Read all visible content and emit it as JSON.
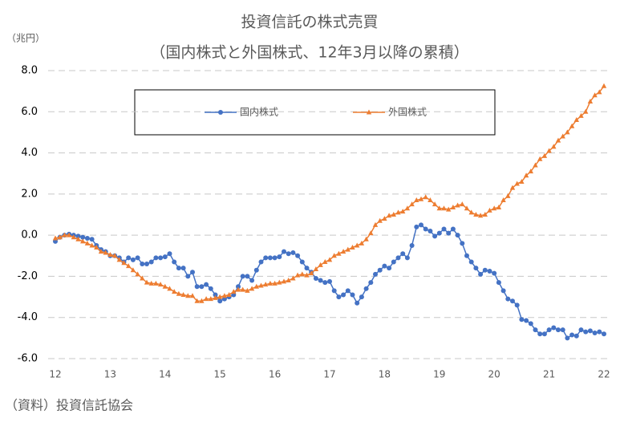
{
  "chart_data": {
    "type": "line",
    "title": "投資信託の株式売買",
    "subtitle": "（国内株式と外国株式、12年3月以降の累積）",
    "y_label": "（兆円）",
    "source": "（資料）投資信託協会",
    "categories": [
      "12",
      null,
      null,
      null,
      null,
      null,
      null,
      null,
      null,
      null,
      null,
      null,
      "13",
      null,
      null,
      null,
      null,
      null,
      null,
      null,
      null,
      null,
      null,
      null,
      "14",
      null,
      null,
      null,
      null,
      null,
      null,
      null,
      null,
      null,
      null,
      null,
      "15",
      null,
      null,
      null,
      null,
      null,
      null,
      null,
      null,
      null,
      null,
      null,
      "16",
      null,
      null,
      null,
      null,
      null,
      null,
      null,
      null,
      null,
      null,
      null,
      "17",
      null,
      null,
      null,
      null,
      null,
      null,
      null,
      null,
      null,
      null,
      null,
      "18",
      null,
      null,
      null,
      null,
      null,
      null,
      null,
      null,
      null,
      null,
      null,
      "19",
      null,
      null,
      null,
      null,
      null,
      null,
      null,
      null,
      null,
      null,
      null,
      "20",
      null,
      null,
      null,
      null,
      null,
      null,
      null,
      null,
      null,
      null,
      null,
      "21",
      null,
      null,
      null,
      null,
      null,
      null,
      null,
      null,
      null,
      null,
      null,
      "22"
    ],
    "series": [
      {
        "name": "国内株式",
        "color": "#4472c4",
        "marker": "circle",
        "values": [
          -0.3,
          -0.1,
          0.0,
          0.05,
          0.0,
          -0.05,
          -0.1,
          -0.15,
          -0.2,
          -0.5,
          -0.7,
          -0.8,
          -1.0,
          -1.0,
          -1.1,
          -1.3,
          -1.1,
          -1.2,
          -1.1,
          -1.4,
          -1.4,
          -1.3,
          -1.1,
          -1.1,
          -1.05,
          -0.9,
          -1.3,
          -1.6,
          -1.6,
          -2.0,
          -1.8,
          -2.5,
          -2.5,
          -2.4,
          -2.6,
          -2.9,
          -3.2,
          -3.1,
          -3.0,
          -2.9,
          -2.5,
          -2.0,
          -2.0,
          -2.2,
          -1.7,
          -1.3,
          -1.1,
          -1.1,
          -1.1,
          -1.05,
          -0.8,
          -0.9,
          -0.85,
          -1.0,
          -1.3,
          -1.6,
          -1.8,
          -2.1,
          -2.2,
          -2.3,
          -2.25,
          -2.7,
          -3.0,
          -2.9,
          -2.7,
          -2.9,
          -3.3,
          -3.0,
          -2.6,
          -2.3,
          -1.9,
          -1.7,
          -1.5,
          -1.6,
          -1.3,
          -1.1,
          -0.9,
          -1.1,
          -0.5,
          0.4,
          0.5,
          0.3,
          0.2,
          -0.05,
          0.1,
          0.3,
          0.1,
          0.3,
          0.0,
          -0.4,
          -1.0,
          -1.3,
          -1.6,
          -1.9,
          -1.7,
          -1.75,
          -1.85,
          -2.3,
          -2.7,
          -3.1,
          -3.2,
          -3.4,
          -4.1,
          -4.15,
          -4.3,
          -4.6,
          -4.8,
          -4.8,
          -4.6,
          -4.5,
          -4.6,
          -4.6,
          -5.0,
          -4.85,
          -4.9,
          -4.6,
          -4.7,
          -4.65,
          -4.75,
          -4.7,
          -4.8
        ]
      },
      {
        "name": "外国株式",
        "color": "#ed7d31",
        "marker": "triangle",
        "values": [
          -0.15,
          -0.1,
          0.0,
          0.0,
          -0.1,
          -0.2,
          -0.3,
          -0.4,
          -0.5,
          -0.6,
          -0.8,
          -0.85,
          -0.95,
          -1.0,
          -1.2,
          -1.35,
          -1.5,
          -1.7,
          -1.9,
          -2.1,
          -2.3,
          -2.35,
          -2.35,
          -2.4,
          -2.5,
          -2.6,
          -2.75,
          -2.85,
          -2.9,
          -2.95,
          -2.95,
          -3.2,
          -3.2,
          -3.1,
          -3.1,
          -3.05,
          -3.0,
          -2.95,
          -2.9,
          -2.75,
          -2.65,
          -2.65,
          -2.7,
          -2.6,
          -2.5,
          -2.45,
          -2.4,
          -2.35,
          -2.35,
          -2.3,
          -2.25,
          -2.2,
          -2.1,
          -1.95,
          -1.9,
          -1.95,
          -1.85,
          -1.65,
          -1.45,
          -1.3,
          -1.2,
          -1.0,
          -0.9,
          -0.8,
          -0.7,
          -0.6,
          -0.5,
          -0.4,
          -0.2,
          0.1,
          0.5,
          0.7,
          0.8,
          0.95,
          1.0,
          1.1,
          1.15,
          1.3,
          1.5,
          1.7,
          1.75,
          1.85,
          1.7,
          1.5,
          1.3,
          1.3,
          1.25,
          1.35,
          1.45,
          1.5,
          1.3,
          1.1,
          1.0,
          0.95,
          1.0,
          1.2,
          1.3,
          1.35,
          1.7,
          1.9,
          2.3,
          2.5,
          2.6,
          2.9,
          3.1,
          3.4,
          3.7,
          3.85,
          4.1,
          4.3,
          4.6,
          4.8,
          5.0,
          5.3,
          5.6,
          5.8,
          6.0,
          6.5,
          6.8,
          6.95,
          7.25
        ]
      }
    ],
    "ylim": [
      -6,
      8
    ],
    "yticks": [
      {
        "value": -6,
        "label": "-6.0"
      },
      {
        "value": -4,
        "label": "-4.0"
      },
      {
        "value": -2,
        "label": "-2.0"
      },
      {
        "value": 0,
        "label": "0.0"
      },
      {
        "value": 2,
        "label": "2.0"
      },
      {
        "value": 4,
        "label": "4.0"
      },
      {
        "value": 6,
        "label": "6.0"
      },
      {
        "value": 8,
        "label": "8.0"
      }
    ],
    "grid": true,
    "legend": "top"
  }
}
